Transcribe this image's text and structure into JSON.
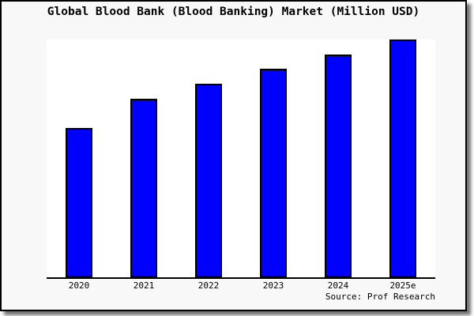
{
  "window": {
    "canvas_background": "#f8f8f8",
    "plot_background": "#ffffff",
    "border_color": "#000000",
    "shadow": "gray drop shadow on right and bottom edges"
  },
  "chart_data": {
    "type": "bar",
    "title": "Global Blood Bank (Blood Banking) Market (Million USD)",
    "categories": [
      "2020",
      "2021",
      "2022",
      "2023",
      "2024",
      "2025e"
    ],
    "values": [
      62.8,
      75.1,
      81.4,
      87.7,
      93.7,
      100
    ],
    "values_note": "no y-axis labels shown in image; values are relative bar heights as percent of tallest (2025e) bar",
    "xlabel": "",
    "ylabel": "",
    "grid": false,
    "legend": "none",
    "bar_color": "#0000ff",
    "bar_border_color": "#000000",
    "axis_line_color": "#000000"
  },
  "source": "Source: Prof Research"
}
